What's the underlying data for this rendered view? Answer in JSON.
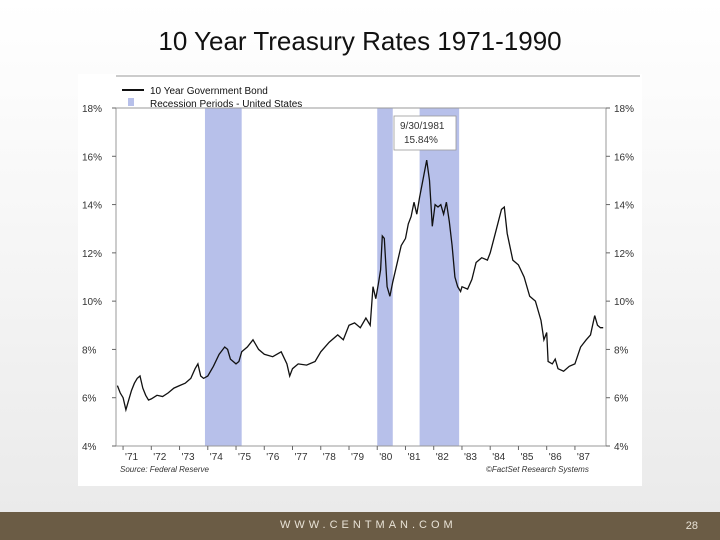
{
  "slide": {
    "title": "10 Year Treasury Rates 1971-1990",
    "footer_url": "WWW.CENTMAN.COM",
    "page_number": "28"
  },
  "colors": {
    "line": "#111111",
    "recession": "#b7c0ea",
    "footer": "#6b5c45"
  },
  "chart_data": {
    "type": "line",
    "title": "",
    "legend": {
      "placement": "top-left",
      "items": [
        {
          "label": "10 Year Government Bond",
          "kind": "line"
        },
        {
          "label": "Recession Periods - United States",
          "kind": "band"
        }
      ]
    },
    "y_ticks_left": [
      "18%",
      "16%",
      "14%",
      "12%",
      "10%",
      "8%",
      "6%",
      "4%"
    ],
    "y_ticks_right": [
      "18%",
      "16%",
      "14%",
      "12%",
      "10%",
      "8%",
      "6%",
      "4%"
    ],
    "ylim": [
      4,
      18
    ],
    "xlim": [
      1970.75,
      1988.1
    ],
    "x_ticks": [
      {
        "label": "'71",
        "x": 1971
      },
      {
        "label": "'72",
        "x": 1972
      },
      {
        "label": "'73",
        "x": 1973
      },
      {
        "label": "'74",
        "x": 1974
      },
      {
        "label": "'75",
        "x": 1975
      },
      {
        "label": "'76",
        "x": 1976
      },
      {
        "label": "'77",
        "x": 1977
      },
      {
        "label": "'78",
        "x": 1978
      },
      {
        "label": "'79",
        "x": 1979
      },
      {
        "label": "'80",
        "x": 1980
      },
      {
        "label": "'81",
        "x": 1981
      },
      {
        "label": "'82",
        "x": 1982
      },
      {
        "label": "'83",
        "x": 1983
      },
      {
        "label": "'84",
        "x": 1984
      },
      {
        "label": "'85",
        "x": 1985
      },
      {
        "label": "'86",
        "x": 1986
      },
      {
        "label": "'87",
        "x": 1987
      }
    ],
    "recessions": [
      {
        "start": 1973.9,
        "end": 1975.2
      },
      {
        "start": 1980.0,
        "end": 1980.55
      },
      {
        "start": 1981.5,
        "end": 1982.9
      }
    ],
    "annotation": {
      "date": "9/30/1981",
      "value": "15.84%",
      "x": 1981.75,
      "y": 15.84
    },
    "source_left": "Source: Federal Reserve",
    "source_right": "©FactSet Research Systems",
    "series": [
      {
        "name": "10 Year Government Bond",
        "points": [
          [
            1970.8,
            6.5
          ],
          [
            1970.9,
            6.2
          ],
          [
            1971.0,
            6.0
          ],
          [
            1971.1,
            5.5
          ],
          [
            1971.2,
            5.9
          ],
          [
            1971.3,
            6.3
          ],
          [
            1971.4,
            6.6
          ],
          [
            1971.5,
            6.8
          ],
          [
            1971.6,
            6.9
          ],
          [
            1971.7,
            6.4
          ],
          [
            1971.8,
            6.1
          ],
          [
            1971.9,
            5.9
          ],
          [
            1972.0,
            5.95
          ],
          [
            1972.2,
            6.1
          ],
          [
            1972.4,
            6.05
          ],
          [
            1972.6,
            6.2
          ],
          [
            1972.8,
            6.4
          ],
          [
            1973.0,
            6.5
          ],
          [
            1973.2,
            6.6
          ],
          [
            1973.4,
            6.8
          ],
          [
            1973.55,
            7.2
          ],
          [
            1973.65,
            7.4
          ],
          [
            1973.75,
            6.9
          ],
          [
            1973.85,
            6.8
          ],
          [
            1974.0,
            6.9
          ],
          [
            1974.2,
            7.3
          ],
          [
            1974.4,
            7.8
          ],
          [
            1974.6,
            8.1
          ],
          [
            1974.7,
            8.0
          ],
          [
            1974.8,
            7.6
          ],
          [
            1974.9,
            7.5
          ],
          [
            1975.0,
            7.4
          ],
          [
            1975.1,
            7.5
          ],
          [
            1975.2,
            7.9
          ],
          [
            1975.4,
            8.1
          ],
          [
            1975.6,
            8.4
          ],
          [
            1975.8,
            8.0
          ],
          [
            1976.0,
            7.8
          ],
          [
            1976.3,
            7.7
          ],
          [
            1976.6,
            7.9
          ],
          [
            1976.8,
            7.4
          ],
          [
            1976.9,
            6.9
          ],
          [
            1977.0,
            7.2
          ],
          [
            1977.2,
            7.4
          ],
          [
            1977.5,
            7.35
          ],
          [
            1977.8,
            7.5
          ],
          [
            1978.0,
            7.9
          ],
          [
            1978.3,
            8.3
          ],
          [
            1978.6,
            8.6
          ],
          [
            1978.8,
            8.4
          ],
          [
            1979.0,
            9.0
          ],
          [
            1979.2,
            9.1
          ],
          [
            1979.4,
            8.9
          ],
          [
            1979.6,
            9.3
          ],
          [
            1979.75,
            9.0
          ],
          [
            1979.85,
            10.6
          ],
          [
            1979.95,
            10.1
          ],
          [
            1980.05,
            10.8
          ],
          [
            1980.12,
            11.3
          ],
          [
            1980.18,
            12.7
          ],
          [
            1980.25,
            12.6
          ],
          [
            1980.35,
            10.6
          ],
          [
            1980.45,
            10.2
          ],
          [
            1980.55,
            10.8
          ],
          [
            1980.65,
            11.3
          ],
          [
            1980.75,
            11.8
          ],
          [
            1980.85,
            12.3
          ],
          [
            1981.0,
            12.6
          ],
          [
            1981.1,
            13.2
          ],
          [
            1981.2,
            13.5
          ],
          [
            1981.3,
            14.1
          ],
          [
            1981.4,
            13.6
          ],
          [
            1981.5,
            14.3
          ],
          [
            1981.6,
            14.9
          ],
          [
            1981.75,
            15.84
          ],
          [
            1981.85,
            15.0
          ],
          [
            1981.95,
            13.1
          ],
          [
            1982.05,
            14.0
          ],
          [
            1982.15,
            13.9
          ],
          [
            1982.25,
            14.0
          ],
          [
            1982.35,
            13.6
          ],
          [
            1982.45,
            14.1
          ],
          [
            1982.55,
            13.3
          ],
          [
            1982.65,
            12.3
          ],
          [
            1982.75,
            11.0
          ],
          [
            1982.85,
            10.6
          ],
          [
            1982.95,
            10.4
          ],
          [
            1983.0,
            10.6
          ],
          [
            1983.2,
            10.5
          ],
          [
            1983.35,
            10.9
          ],
          [
            1983.5,
            11.6
          ],
          [
            1983.7,
            11.8
          ],
          [
            1983.9,
            11.7
          ],
          [
            1984.0,
            12.0
          ],
          [
            1984.2,
            12.9
          ],
          [
            1984.4,
            13.8
          ],
          [
            1984.5,
            13.9
          ],
          [
            1984.6,
            12.8
          ],
          [
            1984.8,
            11.7
          ],
          [
            1985.0,
            11.5
          ],
          [
            1985.2,
            11.0
          ],
          [
            1985.4,
            10.2
          ],
          [
            1985.6,
            10.0
          ],
          [
            1985.8,
            9.2
          ],
          [
            1985.9,
            8.4
          ],
          [
            1986.0,
            8.7
          ],
          [
            1986.05,
            7.5
          ],
          [
            1986.2,
            7.4
          ],
          [
            1986.3,
            7.6
          ],
          [
            1986.4,
            7.2
          ],
          [
            1986.6,
            7.1
          ],
          [
            1986.8,
            7.3
          ],
          [
            1987.0,
            7.4
          ],
          [
            1987.2,
            8.1
          ],
          [
            1987.4,
            8.4
          ],
          [
            1987.55,
            8.6
          ],
          [
            1987.7,
            9.4
          ],
          [
            1987.8,
            9.0
          ],
          [
            1987.9,
            8.9
          ],
          [
            1988.0,
            8.9
          ]
        ]
      }
    ]
  }
}
